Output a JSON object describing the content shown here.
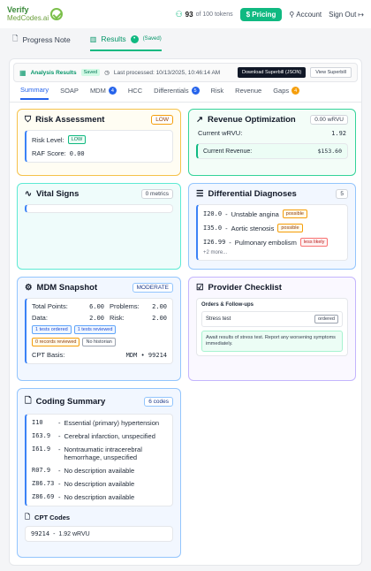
{
  "header": {
    "logo_top": "Verify",
    "logo_bottom": "MedCodes.ai",
    "tokens_count": "93",
    "tokens_suffix": "of 100 tokens",
    "pricing": "Pricing",
    "account": "Account",
    "signout": "Sign Out"
  },
  "subtabs": {
    "progress_note": "Progress Note",
    "results": "Results",
    "results_badge": "•",
    "results_saved": "(Saved)"
  },
  "analysis": {
    "title": "Analysis Results",
    "saved": "Saved",
    "processed": "Last processed: 10/13/2025, 10:46:14 AM",
    "download": "Download Superbill (JSON)",
    "view": "View Superbill"
  },
  "tabs": [
    {
      "label": "Summary"
    },
    {
      "label": "SOAP"
    },
    {
      "label": "MDM",
      "count": "4",
      "color": "#2563eb"
    },
    {
      "label": "HCC"
    },
    {
      "label": "Differentials",
      "count": "5",
      "color": "#2563eb"
    },
    {
      "label": "Risk"
    },
    {
      "label": "Revenue"
    },
    {
      "label": "Gaps",
      "count": "4",
      "color": "#f59e0b"
    }
  ],
  "risk": {
    "title": "Risk Assessment",
    "tag": "LOW",
    "level_label": "Risk Level:",
    "level_value": "LOW",
    "raf_label": "RAF Score:",
    "raf_value": "0.00"
  },
  "revenue": {
    "title": "Revenue Optimization",
    "tag": "0.00 wRVU",
    "current_wrvu_label": "Current wRVU:",
    "current_wrvu_value": "1.92",
    "current_revenue_label": "Current Revenue:",
    "current_revenue_value": "$153.60"
  },
  "vitals": {
    "title": "Vital Signs",
    "tag": "0 metrics"
  },
  "differentials": {
    "title": "Differential Diagnoses",
    "tag": "5",
    "items": [
      {
        "code": "I20.0",
        "name": "Unstable angina",
        "likelihood": "possible"
      },
      {
        "code": "I35.0",
        "name": "Aortic stenosis",
        "likelihood": "possible"
      },
      {
        "code": "I26.99",
        "name": "Pulmonary embolism",
        "likelihood": "less likely"
      }
    ],
    "more": "+2 more..."
  },
  "mdm": {
    "title": "MDM Snapshot",
    "tag": "MODERATE",
    "total_points_label": "Total Points:",
    "total_points_value": "6.00",
    "problems_label": "Problems:",
    "problems_value": "2.00",
    "data_label": "Data:",
    "data_value": "2.00",
    "risk_label": "Risk:",
    "risk_value": "2.00",
    "chips_blue": [
      "1 tests ordered",
      "1 tests reviewed"
    ],
    "chips_other": [
      "0 records reviewed",
      "No historian"
    ],
    "cpt_basis_label": "CPT Basis:",
    "cpt_basis_value": "MDM • 99214"
  },
  "checklist": {
    "title": "Provider Checklist",
    "section": "Orders & Follow-ups",
    "item": "Stress test",
    "item_status": "ordered",
    "note": "Await results of stress test. Report any worsening symptoms immediately."
  },
  "coding": {
    "title": "Coding Summary",
    "tag": "6 codes",
    "codes": [
      {
        "code": "I10",
        "desc": "Essential (primary) hypertension"
      },
      {
        "code": "I63.9",
        "desc": "Cerebral infarction, unspecified"
      },
      {
        "code": "I61.9",
        "desc": "Nontraumatic intracerebral hemorrhage, unspecified"
      },
      {
        "code": "R07.9",
        "desc": "No description available"
      },
      {
        "code": "Z86.73",
        "desc": "No description available"
      },
      {
        "code": "Z86.69",
        "desc": "No description available"
      }
    ],
    "cpt_title": "CPT Codes",
    "cpt_code": "99214",
    "cpt_value": "1.92 wRVU"
  },
  "colors": {
    "accent": "#10b981",
    "risk_border": "#f5c24b",
    "revenue_border": "#34d399",
    "vitals_border": "#5eead4",
    "diff_border": "#93c5fd",
    "mdm_border": "#93c5fd",
    "checklist_border": "#c4b5fd",
    "coding_border": "#93c5fd"
  }
}
